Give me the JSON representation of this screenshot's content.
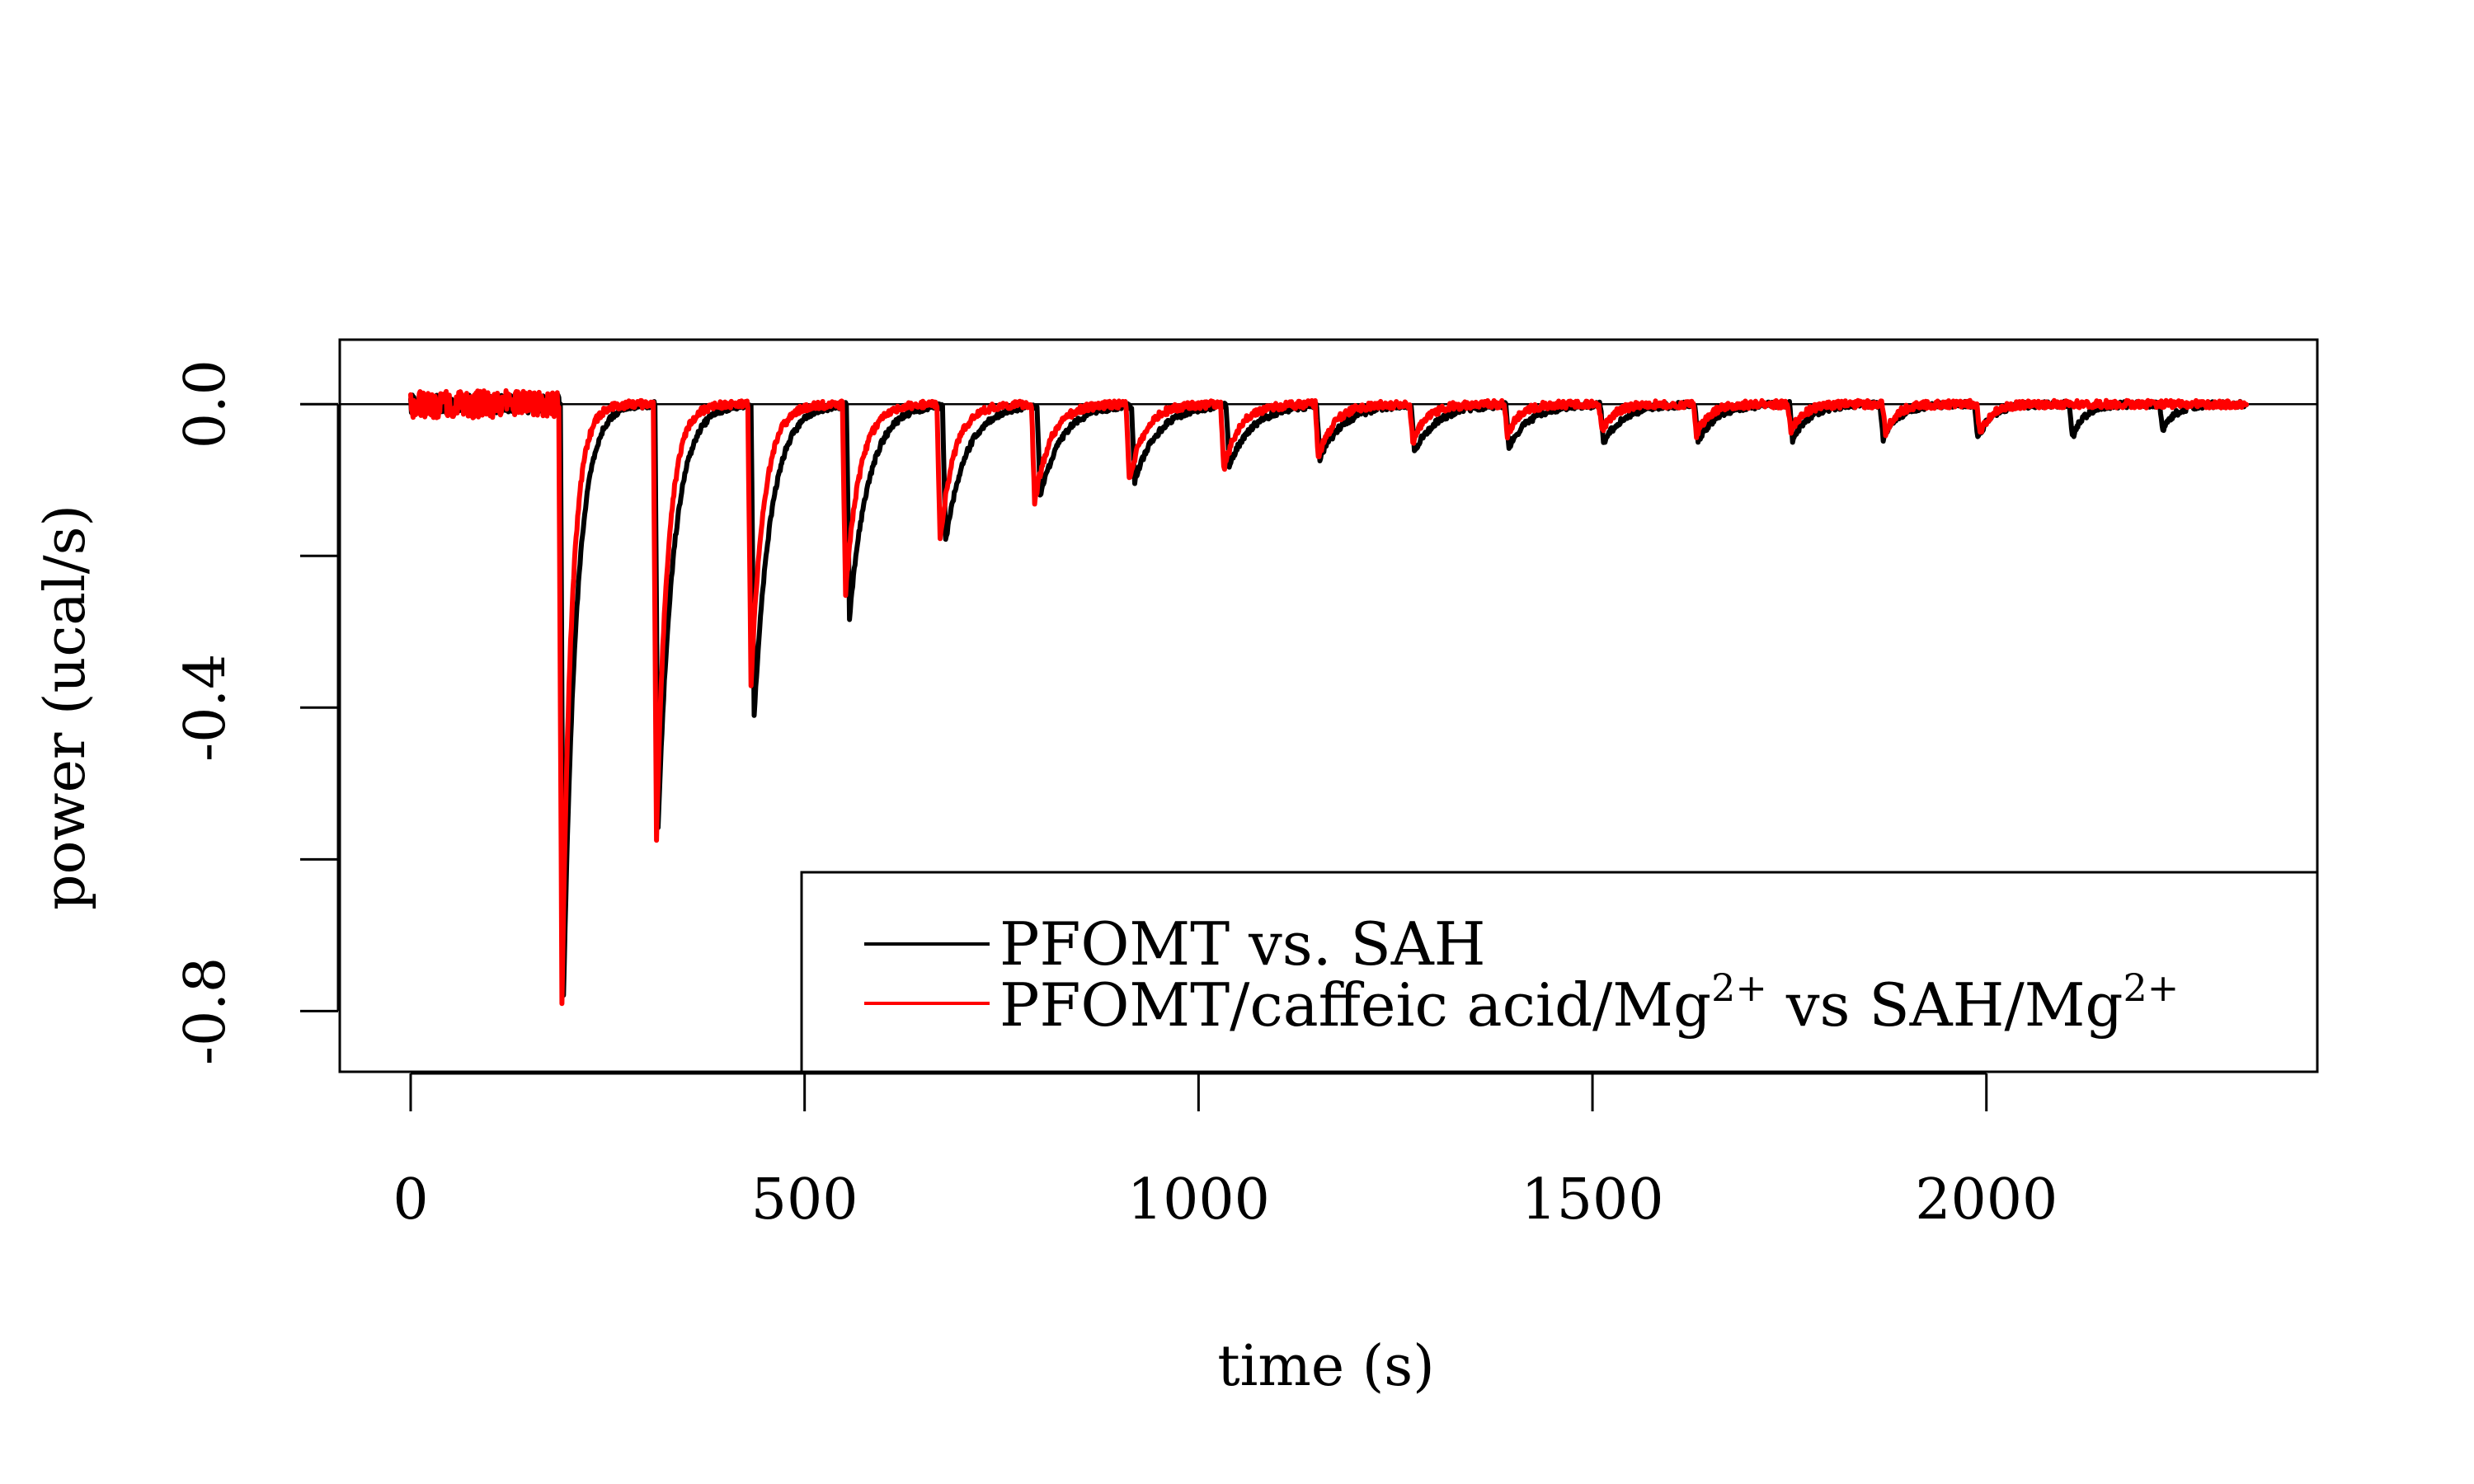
{
  "chart_data": {
    "type": "line",
    "xlabel": "time (s)",
    "ylabel": "power (ucal/s)",
    "xlim": [
      -90,
      2420
    ],
    "ylim": [
      -0.88,
      0.085
    ],
    "x_ticks": [
      0,
      500,
      1000,
      1500,
      2000
    ],
    "x_tick_labels": [
      "0",
      "500",
      "1000",
      "1500",
      "2000"
    ],
    "y_ticks": [
      0.0,
      -0.2,
      -0.4,
      -0.6,
      -0.8
    ],
    "y_tick_labels": [
      "0.0",
      "",
      "-0.4",
      "",
      "-0.8"
    ],
    "reference_line_y": 0.0,
    "grid": false,
    "legend": {
      "position": "bottom-right",
      "entries": [
        {
          "label": "PFOMT vs. SAH",
          "color": "#000000"
        },
        {
          "label_main": "PFOMT/caffeic acid/Mg",
          "label_sup": "2+",
          "label_mid": " vs SAH/Mg",
          "label_sup2": "2+",
          "color": "#ff0000"
        }
      ]
    },
    "series": [
      {
        "name": "PFOMT vs. SAH",
        "color": "#000000",
        "x_end": 2330,
        "baseline_noise": 0.004,
        "pre_injection_noise": 0.012,
        "injections": [
          {
            "t": 190,
            "depth": -0.78,
            "tau": 16
          },
          {
            "t": 310,
            "depth": -0.56,
            "tau": 19
          },
          {
            "t": 432,
            "depth": -0.41,
            "tau": 21
          },
          {
            "t": 553,
            "depth": -0.28,
            "tau": 24
          },
          {
            "t": 675,
            "depth": -0.18,
            "tau": 26
          },
          {
            "t": 795,
            "depth": -0.12,
            "tau": 28
          },
          {
            "t": 915,
            "depth": -0.1,
            "tau": 30
          },
          {
            "t": 1035,
            "depth": -0.08,
            "tau": 30
          },
          {
            "t": 1150,
            "depth": -0.07,
            "tau": 30
          },
          {
            "t": 1270,
            "depth": -0.06,
            "tau": 30
          },
          {
            "t": 1390,
            "depth": -0.055,
            "tau": 28
          },
          {
            "t": 1510,
            "depth": -0.05,
            "tau": 26
          },
          {
            "t": 1630,
            "depth": -0.048,
            "tau": 24
          },
          {
            "t": 1750,
            "depth": -0.046,
            "tau": 22
          },
          {
            "t": 1865,
            "depth": -0.045,
            "tau": 20
          },
          {
            "t": 1985,
            "depth": -0.045,
            "tau": 18
          },
          {
            "t": 2105,
            "depth": -0.044,
            "tau": 16
          },
          {
            "t": 2220,
            "depth": -0.035,
            "tau": 16
          }
        ]
      },
      {
        "name": "PFOMT/caffeic acid/Mg2+ vs SAH/Mg2+",
        "color": "#ff0000",
        "x_end": 2330,
        "baseline_noise": 0.005,
        "pre_injection_noise": 0.018,
        "injections": [
          {
            "t": 188,
            "depth": -0.79,
            "tau": 12
          },
          {
            "t": 308,
            "depth": -0.57,
            "tau": 14
          },
          {
            "t": 428,
            "depth": -0.37,
            "tau": 16
          },
          {
            "t": 548,
            "depth": -0.25,
            "tau": 18
          },
          {
            "t": 668,
            "depth": -0.18,
            "tau": 18
          },
          {
            "t": 788,
            "depth": -0.13,
            "tau": 20
          },
          {
            "t": 908,
            "depth": -0.1,
            "tau": 20
          },
          {
            "t": 1028,
            "depth": -0.085,
            "tau": 20
          },
          {
            "t": 1148,
            "depth": -0.07,
            "tau": 20
          },
          {
            "t": 1268,
            "depth": -0.05,
            "tau": 18
          },
          {
            "t": 1388,
            "depth": -0.04,
            "tau": 16
          },
          {
            "t": 1508,
            "depth": -0.035,
            "tau": 16
          },
          {
            "t": 1628,
            "depth": -0.04,
            "tau": 16
          },
          {
            "t": 1748,
            "depth": -0.035,
            "tau": 16
          },
          {
            "t": 1868,
            "depth": -0.04,
            "tau": 14
          },
          {
            "t": 1988,
            "depth": -0.04,
            "tau": 14
          }
        ]
      }
    ]
  }
}
